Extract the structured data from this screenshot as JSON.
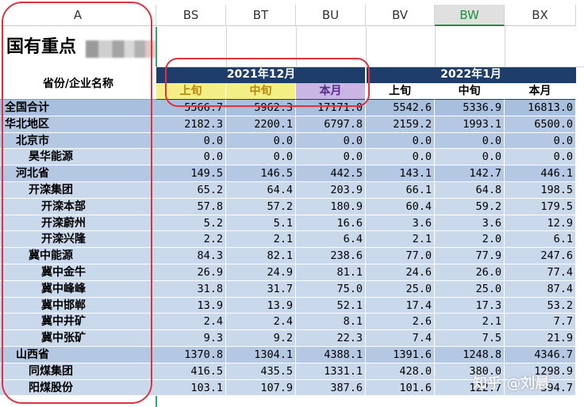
{
  "columns": [
    "A",
    "BS",
    "BT",
    "BU",
    "BV",
    "BW",
    "BX"
  ],
  "selected_column": "BW",
  "title": "国有重点",
  "name_header": "省份/企业名称",
  "groups": [
    {
      "label": "2021年12月",
      "subs": [
        "上旬",
        "中旬",
        "本月"
      ]
    },
    {
      "label": "2022年1月",
      "subs": [
        "上旬",
        "中旬",
        "本月"
      ]
    }
  ],
  "rows": [
    {
      "name": "全国合计",
      "level": 0,
      "values": [
        "5566.7",
        "5962.3",
        "17171.0",
        "5542.6",
        "5336.9",
        "16813.0"
      ]
    },
    {
      "name": "华北地区",
      "level": 0,
      "values": [
        "2182.3",
        "2200.1",
        "6797.8",
        "2159.2",
        "1993.1",
        "6500.0"
      ]
    },
    {
      "name": "北京市",
      "level": 1,
      "values": [
        "0.0",
        "0.0",
        "0.0",
        "0.0",
        "0.0",
        "0.0"
      ]
    },
    {
      "name": "昊华能源",
      "level": 2,
      "values": [
        "0.0",
        "0.0",
        "0.0",
        "0.0",
        "0.0",
        "0.0"
      ]
    },
    {
      "name": "河北省",
      "level": 1,
      "values": [
        "149.5",
        "146.5",
        "442.5",
        "143.1",
        "142.7",
        "446.1"
      ]
    },
    {
      "name": "开滦集团",
      "level": 2,
      "values": [
        "65.2",
        "64.4",
        "203.9",
        "66.1",
        "64.8",
        "198.5"
      ]
    },
    {
      "name": "开滦本部",
      "level": 3,
      "values": [
        "57.8",
        "57.2",
        "180.9",
        "60.4",
        "59.2",
        "179.5"
      ]
    },
    {
      "name": "开滦蔚州",
      "level": 3,
      "values": [
        "5.2",
        "5.1",
        "16.6",
        "3.6",
        "3.6",
        "12.9"
      ]
    },
    {
      "name": "开滦兴隆",
      "level": 3,
      "values": [
        "2.2",
        "2.1",
        "6.4",
        "2.1",
        "2.0",
        "6.1"
      ]
    },
    {
      "name": "冀中能源",
      "level": 2,
      "values": [
        "84.3",
        "82.1",
        "238.6",
        "77.0",
        "77.9",
        "247.6"
      ]
    },
    {
      "name": "冀中金牛",
      "level": 3,
      "values": [
        "26.9",
        "24.9",
        "81.1",
        "24.6",
        "26.0",
        "77.4"
      ]
    },
    {
      "name": "冀中峰峰",
      "level": 3,
      "values": [
        "31.8",
        "31.7",
        "75.0",
        "25.0",
        "25.0",
        "87.4"
      ]
    },
    {
      "name": "冀中邯郸",
      "level": 3,
      "values": [
        "13.9",
        "13.9",
        "52.1",
        "17.4",
        "17.3",
        "53.2"
      ]
    },
    {
      "name": "冀中井矿",
      "level": 3,
      "values": [
        "2.4",
        "2.4",
        "8.1",
        "2.6",
        "2.1",
        "7.7"
      ]
    },
    {
      "name": "冀中张矿",
      "level": 3,
      "values": [
        "9.3",
        "9.2",
        "22.3",
        "7.4",
        "7.5",
        "21.9"
      ]
    },
    {
      "name": "山西省",
      "level": 1,
      "values": [
        "1370.8",
        "1304.1",
        "4388.1",
        "1391.6",
        "1248.8",
        "4346.7"
      ]
    },
    {
      "name": "同煤集团",
      "level": 2,
      "values": [
        "416.5",
        "435.5",
        "1331.1",
        "428.0",
        "380.0",
        "1298.9"
      ]
    },
    {
      "name": "阳煤股份",
      "level": 2,
      "values": [
        "103.1",
        "107.9",
        "387.6",
        "101.6",
        "122.7",
        "394.7"
      ]
    }
  ],
  "watermark": "知乎 @刘晨",
  "colors": {
    "header_navy": "#1f3d6b",
    "yellow_sub": "#f3ef86",
    "purple_sub": "#c9b6e4",
    "row_total": "#a8bfdd",
    "row_region": "#b5c8e3",
    "row_light": "#cad8ec",
    "annotation_red": "#e0323f",
    "selected_green": "#1e8f3e"
  }
}
